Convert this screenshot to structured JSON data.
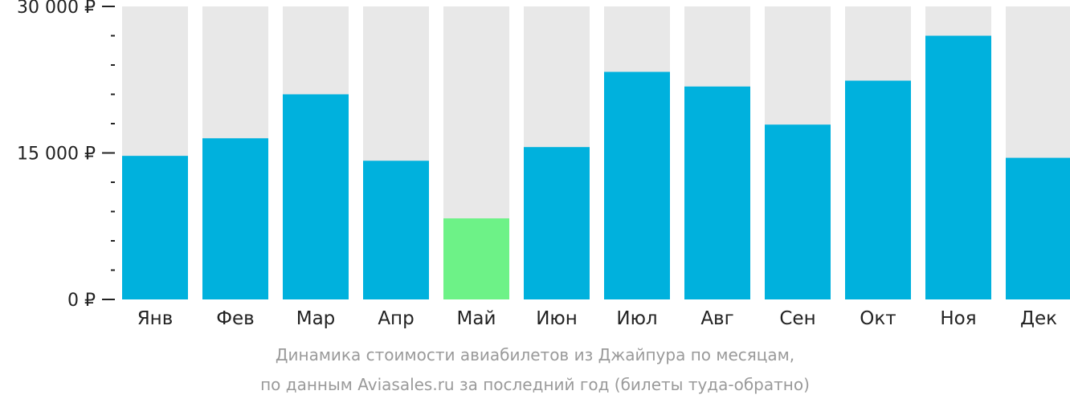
{
  "chart_data": {
    "type": "bar",
    "categories": [
      "Янв",
      "Фев",
      "Мар",
      "Апр",
      "Май",
      "Июн",
      "Июл",
      "Авг",
      "Сен",
      "Окт",
      "Ноя",
      "Дек"
    ],
    "values": [
      14700,
      16500,
      21000,
      14200,
      8300,
      15600,
      23300,
      21800,
      17900,
      22400,
      27000,
      14500
    ],
    "ylim": [
      0,
      30000
    ],
    "y_ticks": [
      {
        "value": 0,
        "label": "0 ₽"
      },
      {
        "value": 15000,
        "label": "15 000 ₽"
      },
      {
        "value": 30000,
        "label": "30 000 ₽"
      }
    ],
    "y_minor_tick_step": 3000,
    "highlight_category": "Май",
    "colors": {
      "bar": "#00b1dd",
      "highlight": "#6df287",
      "track": "#e8e8e8",
      "axis": "#222222"
    },
    "grid": false,
    "legend": "none"
  },
  "caption": {
    "line1": "Динамика стоимости авиабилетов из Джайпура по месяцам,",
    "line2": "по данным Aviasales.ru за последний год (билеты туда-обратно)"
  }
}
